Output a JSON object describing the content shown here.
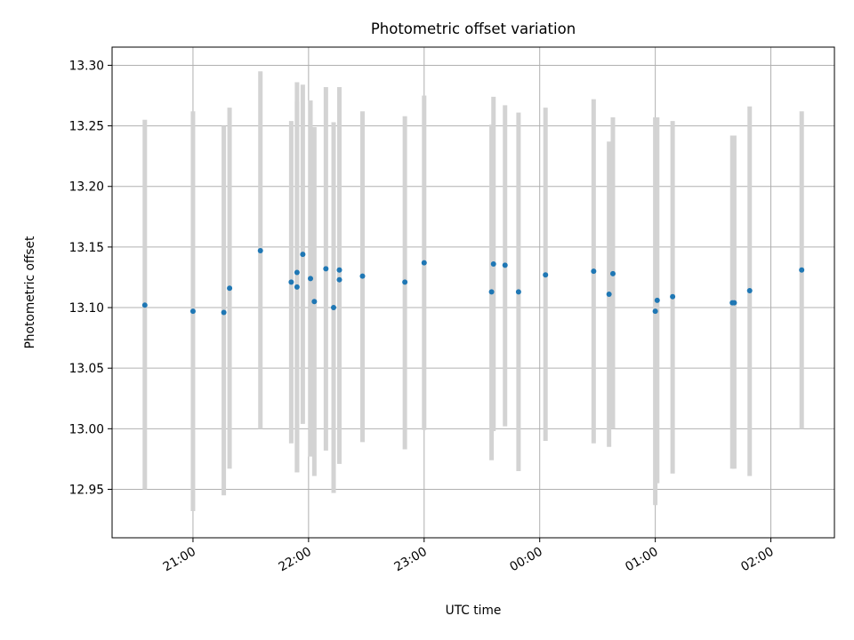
{
  "chart_data": {
    "type": "scatter",
    "title": "Photometric offset variation",
    "xlabel": "UTC time",
    "ylabel": "Photometric offset",
    "xlim": [
      "20:18",
      "02:33"
    ],
    "ylim": [
      12.91,
      13.315
    ],
    "grid": true,
    "x_ticks": [
      "21:00",
      "22:00",
      "23:00",
      "00:00",
      "01:00",
      "02:00"
    ],
    "y_ticks": [
      "12.95",
      "13.00",
      "13.05",
      "13.10",
      "13.15",
      "13.20",
      "13.25",
      "13.30"
    ],
    "points": [
      {
        "t": "20:35",
        "y": 13.102,
        "err_low": 12.95,
        "err_high": 13.255
      },
      {
        "t": "21:00",
        "y": 13.097,
        "err_low": 12.932,
        "err_high": 13.262
      },
      {
        "t": "21:16",
        "y": 13.096,
        "err_low": 12.945,
        "err_high": 13.25
      },
      {
        "t": "21:19",
        "y": 13.116,
        "err_low": 12.967,
        "err_high": 13.265
      },
      {
        "t": "21:35",
        "y": 13.147,
        "err_low": 13.0,
        "err_high": 13.295
      },
      {
        "t": "21:51",
        "y": 13.121,
        "err_low": 12.988,
        "err_high": 13.254
      },
      {
        "t": "21:54",
        "y": 13.129,
        "err_low": 12.964,
        "err_high": 13.286
      },
      {
        "t": "21:54",
        "y": 13.117,
        "err_low": 12.964,
        "err_high": 13.27
      },
      {
        "t": "21:57",
        "y": 13.144,
        "err_low": 13.004,
        "err_high": 13.284
      },
      {
        "t": "22:01",
        "y": 13.124,
        "err_low": 12.977,
        "err_high": 13.271
      },
      {
        "t": "22:03",
        "y": 13.105,
        "err_low": 12.961,
        "err_high": 13.249
      },
      {
        "t": "22:09",
        "y": 13.132,
        "err_low": 12.982,
        "err_high": 13.282
      },
      {
        "t": "22:13",
        "y": 13.1,
        "err_low": 12.947,
        "err_high": 13.253
      },
      {
        "t": "22:16",
        "y": 13.131,
        "err_low": 12.98,
        "err_high": 13.282
      },
      {
        "t": "22:16",
        "y": 13.123,
        "err_low": 12.971,
        "err_high": 13.278
      },
      {
        "t": "22:28",
        "y": 13.126,
        "err_low": 12.989,
        "err_high": 13.262
      },
      {
        "t": "22:50",
        "y": 13.121,
        "err_low": 12.983,
        "err_high": 13.258
      },
      {
        "t": "23:00",
        "y": 13.137,
        "err_low": 12.999,
        "err_high": 13.275
      },
      {
        "t": "23:35",
        "y": 13.113,
        "err_low": 12.974,
        "err_high": 13.251
      },
      {
        "t": "23:36",
        "y": 13.136,
        "err_low": 12.998,
        "err_high": 13.274
      },
      {
        "t": "23:42",
        "y": 13.135,
        "err_low": 13.002,
        "err_high": 13.267
      },
      {
        "t": "23:49",
        "y": 13.113,
        "err_low": 12.965,
        "err_high": 13.261
      },
      {
        "t": "00:03",
        "y": 13.127,
        "err_low": 12.99,
        "err_high": 13.265
      },
      {
        "t": "00:28",
        "y": 13.13,
        "err_low": 12.988,
        "err_high": 13.272
      },
      {
        "t": "00:36",
        "y": 13.111,
        "err_low": 12.985,
        "err_high": 13.237
      },
      {
        "t": "00:38",
        "y": 13.128,
        "err_low": 13.0,
        "err_high": 13.257
      },
      {
        "t": "01:00",
        "y": 13.097,
        "err_low": 12.937,
        "err_high": 13.257
      },
      {
        "t": "01:01",
        "y": 13.106,
        "err_low": 12.955,
        "err_high": 13.257
      },
      {
        "t": "01:09",
        "y": 13.109,
        "err_low": 12.963,
        "err_high": 13.254
      },
      {
        "t": "01:40",
        "y": 13.104,
        "err_low": 12.967,
        "err_high": 13.242
      },
      {
        "t": "01:41",
        "y": 13.104,
        "err_low": 12.967,
        "err_high": 13.242
      },
      {
        "t": "01:49",
        "y": 13.114,
        "err_low": 12.961,
        "err_high": 13.266
      },
      {
        "t": "02:16",
        "y": 13.131,
        "err_low": 13.0,
        "err_high": 13.262
      }
    ],
    "colors": {
      "marker": "#1f77b4",
      "errorbar": "#d3d3d3",
      "grid": "#b0b0b0",
      "axes": "#000000"
    }
  }
}
